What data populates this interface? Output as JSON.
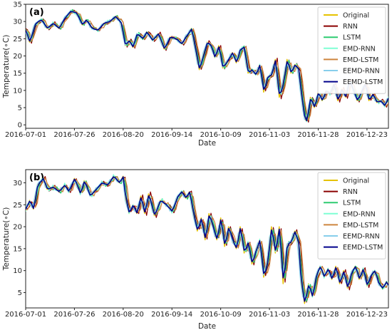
{
  "chart_data": [
    {
      "type": "line",
      "panel_label": "(a)",
      "xlabel": "Date",
      "ylabel": "Temperature(∘C)",
      "x_ticks": [
        "2016-07-01",
        "2016-07-26",
        "2016-08-20",
        "2016-09-14",
        "2016-10-09",
        "2016-11-03",
        "2016-11-28",
        "2016-12-23"
      ],
      "ylim": [
        -1,
        35
      ],
      "y_ticks": [
        0,
        5,
        10,
        15,
        20,
        25,
        30,
        35
      ],
      "legend_position": "top-right",
      "series": [
        {
          "name": "Original",
          "color": "#e6c200"
        },
        {
          "name": "RNN",
          "color": "#8b0000"
        },
        {
          "name": "LSTM",
          "color": "#2ecc71"
        },
        {
          "name": "EMD-RNN",
          "color": "#7fffd4"
        },
        {
          "name": "EMD-LSTM",
          "color": "#cd853f"
        },
        {
          "name": "EEMD-RNN",
          "color": "#87ceeb"
        },
        {
          "name": "EEMD-LSTM",
          "color": "#00008b"
        }
      ],
      "base_curve": [
        [
          0,
          27.5
        ],
        [
          2,
          24
        ],
        [
          5,
          29.5
        ],
        [
          8,
          30.5
        ],
        [
          11,
          28
        ],
        [
          14,
          29.5
        ],
        [
          17,
          28
        ],
        [
          20,
          31
        ],
        [
          23,
          33
        ],
        [
          26,
          32.5
        ],
        [
          29,
          29
        ],
        [
          31,
          30.5
        ],
        [
          34,
          28
        ],
        [
          37,
          27.5
        ],
        [
          40,
          29.5
        ],
        [
          43,
          30
        ],
        [
          46,
          31.5
        ],
        [
          49,
          29.5
        ],
        [
          51,
          23
        ],
        [
          53,
          24.5
        ],
        [
          55,
          22.5
        ],
        [
          57,
          26.5
        ],
        [
          60,
          25
        ],
        [
          62,
          27
        ],
        [
          65,
          24.5
        ],
        [
          68,
          26.5
        ],
        [
          71,
          22
        ],
        [
          74,
          25.5
        ],
        [
          77,
          25
        ],
        [
          80,
          23.5
        ],
        [
          82,
          25.5
        ],
        [
          84,
          27
        ],
        [
          85,
          28
        ],
        [
          87,
          22
        ],
        [
          89,
          16
        ],
        [
          91,
          20
        ],
        [
          93,
          24
        ],
        [
          95,
          23
        ],
        [
          97,
          19.5
        ],
        [
          99,
          23
        ],
        [
          101,
          16.5
        ],
        [
          104,
          19
        ],
        [
          106,
          21
        ],
        [
          108,
          18
        ],
        [
          110,
          22
        ],
        [
          112,
          22.5
        ],
        [
          114,
          15
        ],
        [
          116,
          16
        ],
        [
          118,
          14.5
        ],
        [
          120,
          17.5
        ],
        [
          122,
          9.5
        ],
        [
          124,
          14
        ],
        [
          126,
          14.5
        ],
        [
          128,
          19
        ],
        [
          130,
          8
        ],
        [
          132,
          12
        ],
        [
          134,
          19
        ],
        [
          136,
          15
        ],
        [
          138,
          17.5
        ],
        [
          140,
          16
        ],
        [
          141,
          10
        ],
        [
          143,
          2
        ],
        [
          144,
          1
        ],
        [
          146,
          8
        ],
        [
          148,
          5
        ],
        [
          150,
          9.5
        ],
        [
          152,
          7
        ],
        [
          154,
          10
        ],
        [
          156,
          9
        ],
        [
          158,
          12
        ],
        [
          160,
          7
        ],
        [
          162,
          10.5
        ],
        [
          164,
          8
        ],
        [
          166,
          13
        ],
        [
          168,
          10
        ],
        [
          170,
          7
        ],
        [
          172,
          9.5
        ],
        [
          174,
          12
        ],
        [
          176,
          7
        ],
        [
          178,
          9
        ],
        [
          180,
          6.5
        ],
        [
          182,
          7
        ],
        [
          184,
          5.5
        ],
        [
          186,
          8
        ]
      ]
    },
    {
      "type": "line",
      "panel_label": "(b)",
      "xlabel": "Date",
      "ylabel": "Temperature(∘C)",
      "x_ticks": [
        "2016-07-01",
        "2016-07-26",
        "2016-08-20",
        "2016-09-14",
        "2016-10-09",
        "2016-11-03",
        "2016-11-28",
        "2016-12-23"
      ],
      "ylim": [
        1.5,
        33
      ],
      "y_ticks": [
        5,
        10,
        15,
        20,
        25,
        30
      ],
      "legend_position": "top-right",
      "series": [
        {
          "name": "Original",
          "color": "#e6c200"
        },
        {
          "name": "RNN",
          "color": "#8b0000"
        },
        {
          "name": "LSTM",
          "color": "#2ecc71"
        },
        {
          "name": "EMD-RNN",
          "color": "#7fffd4"
        },
        {
          "name": "EMD-LSTM",
          "color": "#cd853f"
        },
        {
          "name": "EEMD-RNN",
          "color": "#87ceeb"
        },
        {
          "name": "EEMD-LSTM",
          "color": "#00008b"
        }
      ],
      "base_curve": [
        [
          0,
          24
        ],
        [
          2,
          26
        ],
        [
          4,
          24
        ],
        [
          6,
          29.5
        ],
        [
          9,
          31
        ],
        [
          11,
          28.5
        ],
        [
          14,
          29
        ],
        [
          17,
          28
        ],
        [
          20,
          29.5
        ],
        [
          22,
          28
        ],
        [
          25,
          31
        ],
        [
          28,
          27.5
        ],
        [
          30,
          30.5
        ],
        [
          33,
          27
        ],
        [
          36,
          28.5
        ],
        [
          39,
          30
        ],
        [
          42,
          29.5
        ],
        [
          45,
          31.5
        ],
        [
          48,
          30
        ],
        [
          50,
          31.5
        ],
        [
          51,
          27
        ],
        [
          53,
          23
        ],
        [
          55,
          25
        ],
        [
          57,
          23
        ],
        [
          59,
          27
        ],
        [
          61,
          23
        ],
        [
          63,
          27.5
        ],
        [
          66,
          22.5
        ],
        [
          69,
          26
        ],
        [
          72,
          25
        ],
        [
          75,
          23.5
        ],
        [
          78,
          27
        ],
        [
          80,
          28
        ],
        [
          82,
          26.5
        ],
        [
          84,
          28
        ],
        [
          86,
          23
        ],
        [
          88,
          19
        ],
        [
          90,
          22
        ],
        [
          92,
          17
        ],
        [
          94,
          23
        ],
        [
          96,
          20
        ],
        [
          98,
          17
        ],
        [
          100,
          22
        ],
        [
          102,
          15.5
        ],
        [
          104,
          20
        ],
        [
          106,
          17
        ],
        [
          108,
          15
        ],
        [
          110,
          20
        ],
        [
          112,
          14
        ],
        [
          114,
          16.5
        ],
        [
          116,
          11.5
        ],
        [
          118,
          14.5
        ],
        [
          120,
          17
        ],
        [
          122,
          8.5
        ],
        [
          124,
          12
        ],
        [
          126,
          20
        ],
        [
          128,
          14
        ],
        [
          130,
          20
        ],
        [
          132,
          7
        ],
        [
          134,
          16
        ],
        [
          136,
          16.5
        ],
        [
          138,
          19
        ],
        [
          140,
          16
        ],
        [
          141,
          8
        ],
        [
          143,
          2.5
        ],
        [
          145,
          7
        ],
        [
          147,
          4
        ],
        [
          149,
          9
        ],
        [
          151,
          11
        ],
        [
          153,
          8.5
        ],
        [
          155,
          10.5
        ],
        [
          157,
          8
        ],
        [
          159,
          11
        ],
        [
          161,
          7
        ],
        [
          163,
          10
        ],
        [
          165,
          6
        ],
        [
          167,
          9.5
        ],
        [
          169,
          11
        ],
        [
          171,
          8
        ],
        [
          173,
          10.5
        ],
        [
          175,
          6.5
        ],
        [
          177,
          9
        ],
        [
          179,
          10
        ],
        [
          181,
          7
        ],
        [
          183,
          6
        ],
        [
          185,
          7.5
        ],
        [
          186,
          6.5
        ]
      ]
    }
  ]
}
